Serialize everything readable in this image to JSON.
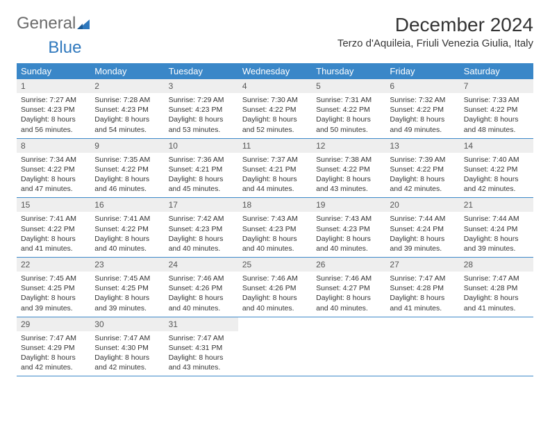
{
  "brand": {
    "text1": "General",
    "text2": "Blue"
  },
  "title": "December 2024",
  "location": "Terzo d'Aquileia, Friuli Venezia Giulia, Italy",
  "colors": {
    "header_blue": "#3a87c8",
    "row_divider": "#3a87c8",
    "daynum_bg": "#eeeeee",
    "text": "#333333",
    "logo_gray": "#6b6b6b",
    "logo_blue": "#2f78bd",
    "background": "#ffffff"
  },
  "typography": {
    "title_fontsize": 28,
    "location_fontsize": 15,
    "dow_fontsize": 13,
    "daynum_fontsize": 12,
    "body_fontsize": 10.5
  },
  "days_of_week": [
    "Sunday",
    "Monday",
    "Tuesday",
    "Wednesday",
    "Thursday",
    "Friday",
    "Saturday"
  ],
  "weeks": [
    [
      {
        "n": "1",
        "sunrise": "7:27 AM",
        "sunset": "4:23 PM",
        "daylight": "8 hours and 56 minutes."
      },
      {
        "n": "2",
        "sunrise": "7:28 AM",
        "sunset": "4:23 PM",
        "daylight": "8 hours and 54 minutes."
      },
      {
        "n": "3",
        "sunrise": "7:29 AM",
        "sunset": "4:23 PM",
        "daylight": "8 hours and 53 minutes."
      },
      {
        "n": "4",
        "sunrise": "7:30 AM",
        "sunset": "4:22 PM",
        "daylight": "8 hours and 52 minutes."
      },
      {
        "n": "5",
        "sunrise": "7:31 AM",
        "sunset": "4:22 PM",
        "daylight": "8 hours and 50 minutes."
      },
      {
        "n": "6",
        "sunrise": "7:32 AM",
        "sunset": "4:22 PM",
        "daylight": "8 hours and 49 minutes."
      },
      {
        "n": "7",
        "sunrise": "7:33 AM",
        "sunset": "4:22 PM",
        "daylight": "8 hours and 48 minutes."
      }
    ],
    [
      {
        "n": "8",
        "sunrise": "7:34 AM",
        "sunset": "4:22 PM",
        "daylight": "8 hours and 47 minutes."
      },
      {
        "n": "9",
        "sunrise": "7:35 AM",
        "sunset": "4:22 PM",
        "daylight": "8 hours and 46 minutes."
      },
      {
        "n": "10",
        "sunrise": "7:36 AM",
        "sunset": "4:21 PM",
        "daylight": "8 hours and 45 minutes."
      },
      {
        "n": "11",
        "sunrise": "7:37 AM",
        "sunset": "4:21 PM",
        "daylight": "8 hours and 44 minutes."
      },
      {
        "n": "12",
        "sunrise": "7:38 AM",
        "sunset": "4:22 PM",
        "daylight": "8 hours and 43 minutes."
      },
      {
        "n": "13",
        "sunrise": "7:39 AM",
        "sunset": "4:22 PM",
        "daylight": "8 hours and 42 minutes."
      },
      {
        "n": "14",
        "sunrise": "7:40 AM",
        "sunset": "4:22 PM",
        "daylight": "8 hours and 42 minutes."
      }
    ],
    [
      {
        "n": "15",
        "sunrise": "7:41 AM",
        "sunset": "4:22 PM",
        "daylight": "8 hours and 41 minutes."
      },
      {
        "n": "16",
        "sunrise": "7:41 AM",
        "sunset": "4:22 PM",
        "daylight": "8 hours and 40 minutes."
      },
      {
        "n": "17",
        "sunrise": "7:42 AM",
        "sunset": "4:23 PM",
        "daylight": "8 hours and 40 minutes."
      },
      {
        "n": "18",
        "sunrise": "7:43 AM",
        "sunset": "4:23 PM",
        "daylight": "8 hours and 40 minutes."
      },
      {
        "n": "19",
        "sunrise": "7:43 AM",
        "sunset": "4:23 PM",
        "daylight": "8 hours and 40 minutes."
      },
      {
        "n": "20",
        "sunrise": "7:44 AM",
        "sunset": "4:24 PM",
        "daylight": "8 hours and 39 minutes."
      },
      {
        "n": "21",
        "sunrise": "7:44 AM",
        "sunset": "4:24 PM",
        "daylight": "8 hours and 39 minutes."
      }
    ],
    [
      {
        "n": "22",
        "sunrise": "7:45 AM",
        "sunset": "4:25 PM",
        "daylight": "8 hours and 39 minutes."
      },
      {
        "n": "23",
        "sunrise": "7:45 AM",
        "sunset": "4:25 PM",
        "daylight": "8 hours and 39 minutes."
      },
      {
        "n": "24",
        "sunrise": "7:46 AM",
        "sunset": "4:26 PM",
        "daylight": "8 hours and 40 minutes."
      },
      {
        "n": "25",
        "sunrise": "7:46 AM",
        "sunset": "4:26 PM",
        "daylight": "8 hours and 40 minutes."
      },
      {
        "n": "26",
        "sunrise": "7:46 AM",
        "sunset": "4:27 PM",
        "daylight": "8 hours and 40 minutes."
      },
      {
        "n": "27",
        "sunrise": "7:47 AM",
        "sunset": "4:28 PM",
        "daylight": "8 hours and 41 minutes."
      },
      {
        "n": "28",
        "sunrise": "7:47 AM",
        "sunset": "4:28 PM",
        "daylight": "8 hours and 41 minutes."
      }
    ],
    [
      {
        "n": "29",
        "sunrise": "7:47 AM",
        "sunset": "4:29 PM",
        "daylight": "8 hours and 42 minutes."
      },
      {
        "n": "30",
        "sunrise": "7:47 AM",
        "sunset": "4:30 PM",
        "daylight": "8 hours and 42 minutes."
      },
      {
        "n": "31",
        "sunrise": "7:47 AM",
        "sunset": "4:31 PM",
        "daylight": "8 hours and 43 minutes."
      },
      null,
      null,
      null,
      null
    ]
  ],
  "labels": {
    "sunrise": "Sunrise:",
    "sunset": "Sunset:",
    "daylight": "Daylight:"
  }
}
